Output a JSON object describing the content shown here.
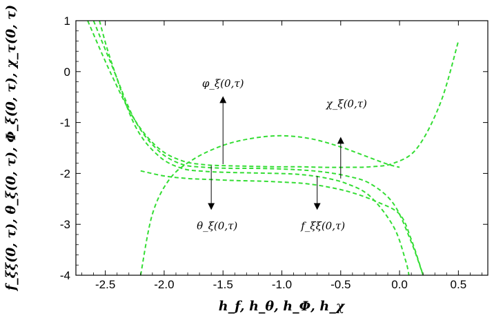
{
  "chart_data": {
    "type": "line",
    "title": "",
    "xlabel": "h_f, h_θ, h_Φ, h_χ",
    "ylabel": "f_ξξ(0, τ), θ_ξ(0, τ), Φ_ξ(0, τ), χ_τ(0, τ)",
    "xlim": [
      -2.75,
      0.75
    ],
    "ylim": [
      -4,
      1
    ],
    "x_ticks": [
      -2.5,
      -2.0,
      -1.5,
      -1.0,
      -0.5,
      0.0,
      0.5
    ],
    "x_tick_labels": [
      "-2.5",
      "-2.0",
      "-1.5",
      "-1.0",
      "-0.5",
      "0.0",
      "0.5"
    ],
    "y_ticks": [
      1,
      0,
      -1,
      -2,
      -3,
      -4
    ],
    "y_tick_labels": [
      "1",
      "0",
      "-1",
      "-2",
      "-3",
      "-4"
    ],
    "grid": false,
    "line_color": "#33dd33",
    "line_style": "dashed",
    "series": [
      {
        "x": [
          -2.65,
          -2.45,
          -2.25,
          -2.05,
          -1.85,
          -1.65,
          -1.45,
          -1.25,
          -1.05,
          -0.85,
          -0.65,
          -0.45,
          -0.25,
          -0.05,
          0.15,
          0.35,
          0.5
        ],
        "y": [
          1.0,
          -0.05,
          -0.95,
          -1.5,
          -1.75,
          -1.83,
          -1.85,
          -1.86,
          -1.87,
          -1.87,
          -1.88,
          -1.88,
          -1.87,
          -1.8,
          -1.5,
          -0.6,
          0.6
        ]
      },
      {
        "x": [
          -2.6,
          -2.45,
          -2.25,
          -2.05,
          -1.85,
          -1.65,
          -1.45,
          -1.25,
          -1.05,
          -0.85,
          -0.65,
          -0.45,
          -0.25,
          -0.05,
          0.1,
          0.2
        ],
        "y": [
          1.0,
          0.15,
          -0.95,
          -1.55,
          -1.82,
          -1.88,
          -1.9,
          -1.9,
          -1.91,
          -1.93,
          -1.97,
          -2.05,
          -2.2,
          -2.6,
          -3.35,
          -4.0
        ]
      },
      {
        "x": [
          -2.55,
          -2.45,
          -2.25,
          -2.05,
          -1.85,
          -1.65,
          -1.45,
          -1.25,
          -1.05,
          -0.85,
          -0.65,
          -0.45,
          -0.25,
          -0.05,
          0.05,
          0.08
        ],
        "y": [
          1.0,
          0.2,
          -1.05,
          -1.65,
          -1.9,
          -1.96,
          -1.98,
          -1.99,
          -2.0,
          -2.02,
          -2.08,
          -2.2,
          -2.45,
          -3.05,
          -3.7,
          -4.0
        ]
      },
      {
        "x": [
          -2.2,
          -2.1,
          -1.95,
          -1.75,
          -1.5,
          -1.25,
          -1.0,
          -0.75,
          -0.5,
          -0.3,
          -0.1,
          0.0
        ],
        "y": [
          -4.0,
          -2.8,
          -2.1,
          -1.72,
          -1.45,
          -1.31,
          -1.26,
          -1.32,
          -1.48,
          -1.65,
          -1.82,
          -1.88
        ]
      },
      {
        "x": [
          -2.2,
          -2.0,
          -1.8,
          -1.6,
          -1.4,
          -1.2,
          -1.0,
          -0.8,
          -0.6,
          -0.4,
          -0.2,
          0.0,
          0.1,
          0.2
        ],
        "y": [
          -1.95,
          -2.05,
          -2.1,
          -2.12,
          -2.14,
          -2.15,
          -2.17,
          -2.2,
          -2.27,
          -2.38,
          -2.55,
          -2.8,
          -3.3,
          -4.0
        ]
      }
    ],
    "annotations": [
      {
        "text": "φ_ξ(0,τ)",
        "arrow": "up",
        "x": -1.5,
        "from_y": -1.82,
        "to_y": -0.55,
        "label_x": -1.5,
        "label_y": -0.3
      },
      {
        "text": "χ_ξ(0,τ)",
        "arrow": "up",
        "x": -0.5,
        "from_y": -2.1,
        "to_y": -1.35,
        "label_x": -0.45,
        "label_y": -0.7
      },
      {
        "text": "θ_ξ(0,τ)",
        "arrow": "down",
        "x": -1.6,
        "from_y": -1.85,
        "to_y": -2.65,
        "label_x": -1.55,
        "label_y": -3.1
      },
      {
        "text": "f_ξξ(0,τ)",
        "arrow": "down",
        "x": -0.7,
        "from_y": -2.05,
        "to_y": -2.65,
        "label_x": -0.65,
        "label_y": -3.1
      }
    ]
  }
}
